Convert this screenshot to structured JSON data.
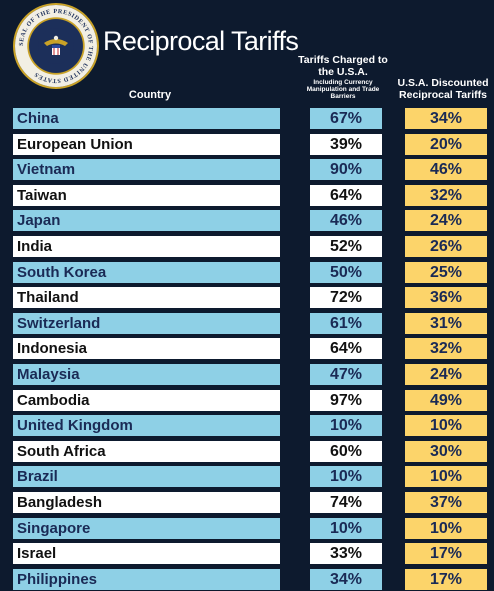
{
  "title": "Reciprocal Tariffs",
  "seal": {
    "text": "SEAL OF THE PRESIDENT OF THE UNITED STATES"
  },
  "headers": {
    "country": "Country",
    "charged": "Tariffs Charged to the U.S.A.",
    "charged_small": "Including Currency Manipulation and Trade Barriers",
    "discounted": "U.S.A. Discounted Reciprocal Tariffs"
  },
  "colors": {
    "background": "#0d1a2e",
    "blue_row": "#8ed0e6",
    "white_row": "#ffffff",
    "discount_cell": "#fcd46a"
  },
  "chart_data": {
    "type": "table",
    "title": "Reciprocal Tariffs",
    "columns": [
      "Country",
      "Tariffs Charged to the U.S.A. Including Currency Manipulation and Trade Barriers",
      "U.S.A. Discounted Reciprocal Tariffs"
    ],
    "rows": [
      {
        "country": "China",
        "charged": "67%",
        "discounted": "34%"
      },
      {
        "country": "European Union",
        "charged": "39%",
        "discounted": "20%"
      },
      {
        "country": "Vietnam",
        "charged": "90%",
        "discounted": "46%"
      },
      {
        "country": "Taiwan",
        "charged": "64%",
        "discounted": "32%"
      },
      {
        "country": "Japan",
        "charged": "46%",
        "discounted": "24%"
      },
      {
        "country": "India",
        "charged": "52%",
        "discounted": "26%"
      },
      {
        "country": "South Korea",
        "charged": "50%",
        "discounted": "25%"
      },
      {
        "country": "Thailand",
        "charged": "72%",
        "discounted": "36%"
      },
      {
        "country": "Switzerland",
        "charged": "61%",
        "discounted": "31%"
      },
      {
        "country": "Indonesia",
        "charged": "64%",
        "discounted": "32%"
      },
      {
        "country": "Malaysia",
        "charged": "47%",
        "discounted": "24%"
      },
      {
        "country": "Cambodia",
        "charged": "97%",
        "discounted": "49%"
      },
      {
        "country": "United Kingdom",
        "charged": "10%",
        "discounted": "10%"
      },
      {
        "country": "South Africa",
        "charged": "60%",
        "discounted": "30%"
      },
      {
        "country": "Brazil",
        "charged": "10%",
        "discounted": "10%"
      },
      {
        "country": "Bangladesh",
        "charged": "74%",
        "discounted": "37%"
      },
      {
        "country": "Singapore",
        "charged": "10%",
        "discounted": "10%"
      },
      {
        "country": "Israel",
        "charged": "33%",
        "discounted": "17%"
      },
      {
        "country": "Philippines",
        "charged": "34%",
        "discounted": "17%"
      }
    ]
  }
}
